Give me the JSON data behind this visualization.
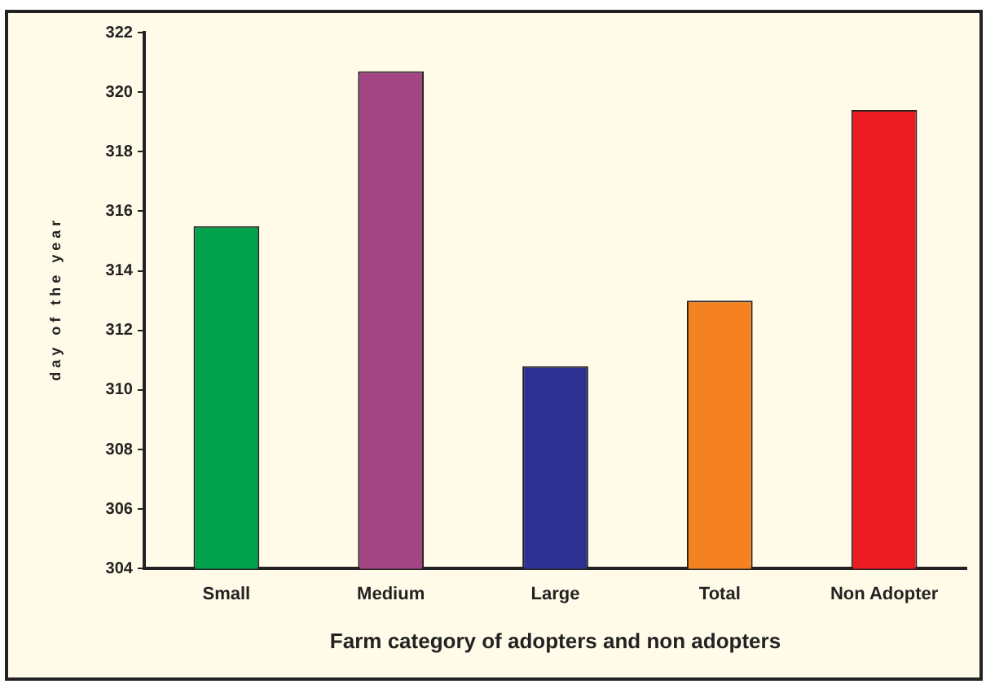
{
  "chart_data": {
    "type": "bar",
    "xlabel": "Farm category of adopters and non adopters",
    "ylabel": "d a y   o f   t h e   y e a r",
    "categories": [
      "Small",
      "Medium",
      "Large",
      "Total",
      "Non Adopter"
    ],
    "values": [
      315.5,
      320.7,
      310.8,
      313.0,
      319.4
    ],
    "colors": [
      "#00a24b",
      "#a34584",
      "#2e3192",
      "#f58220",
      "#ed1c24"
    ],
    "ylim": [
      304,
      322
    ],
    "yticks": [
      304,
      306,
      308,
      310,
      312,
      314,
      316,
      318,
      320,
      322
    ],
    "grid": false,
    "legend": false
  }
}
